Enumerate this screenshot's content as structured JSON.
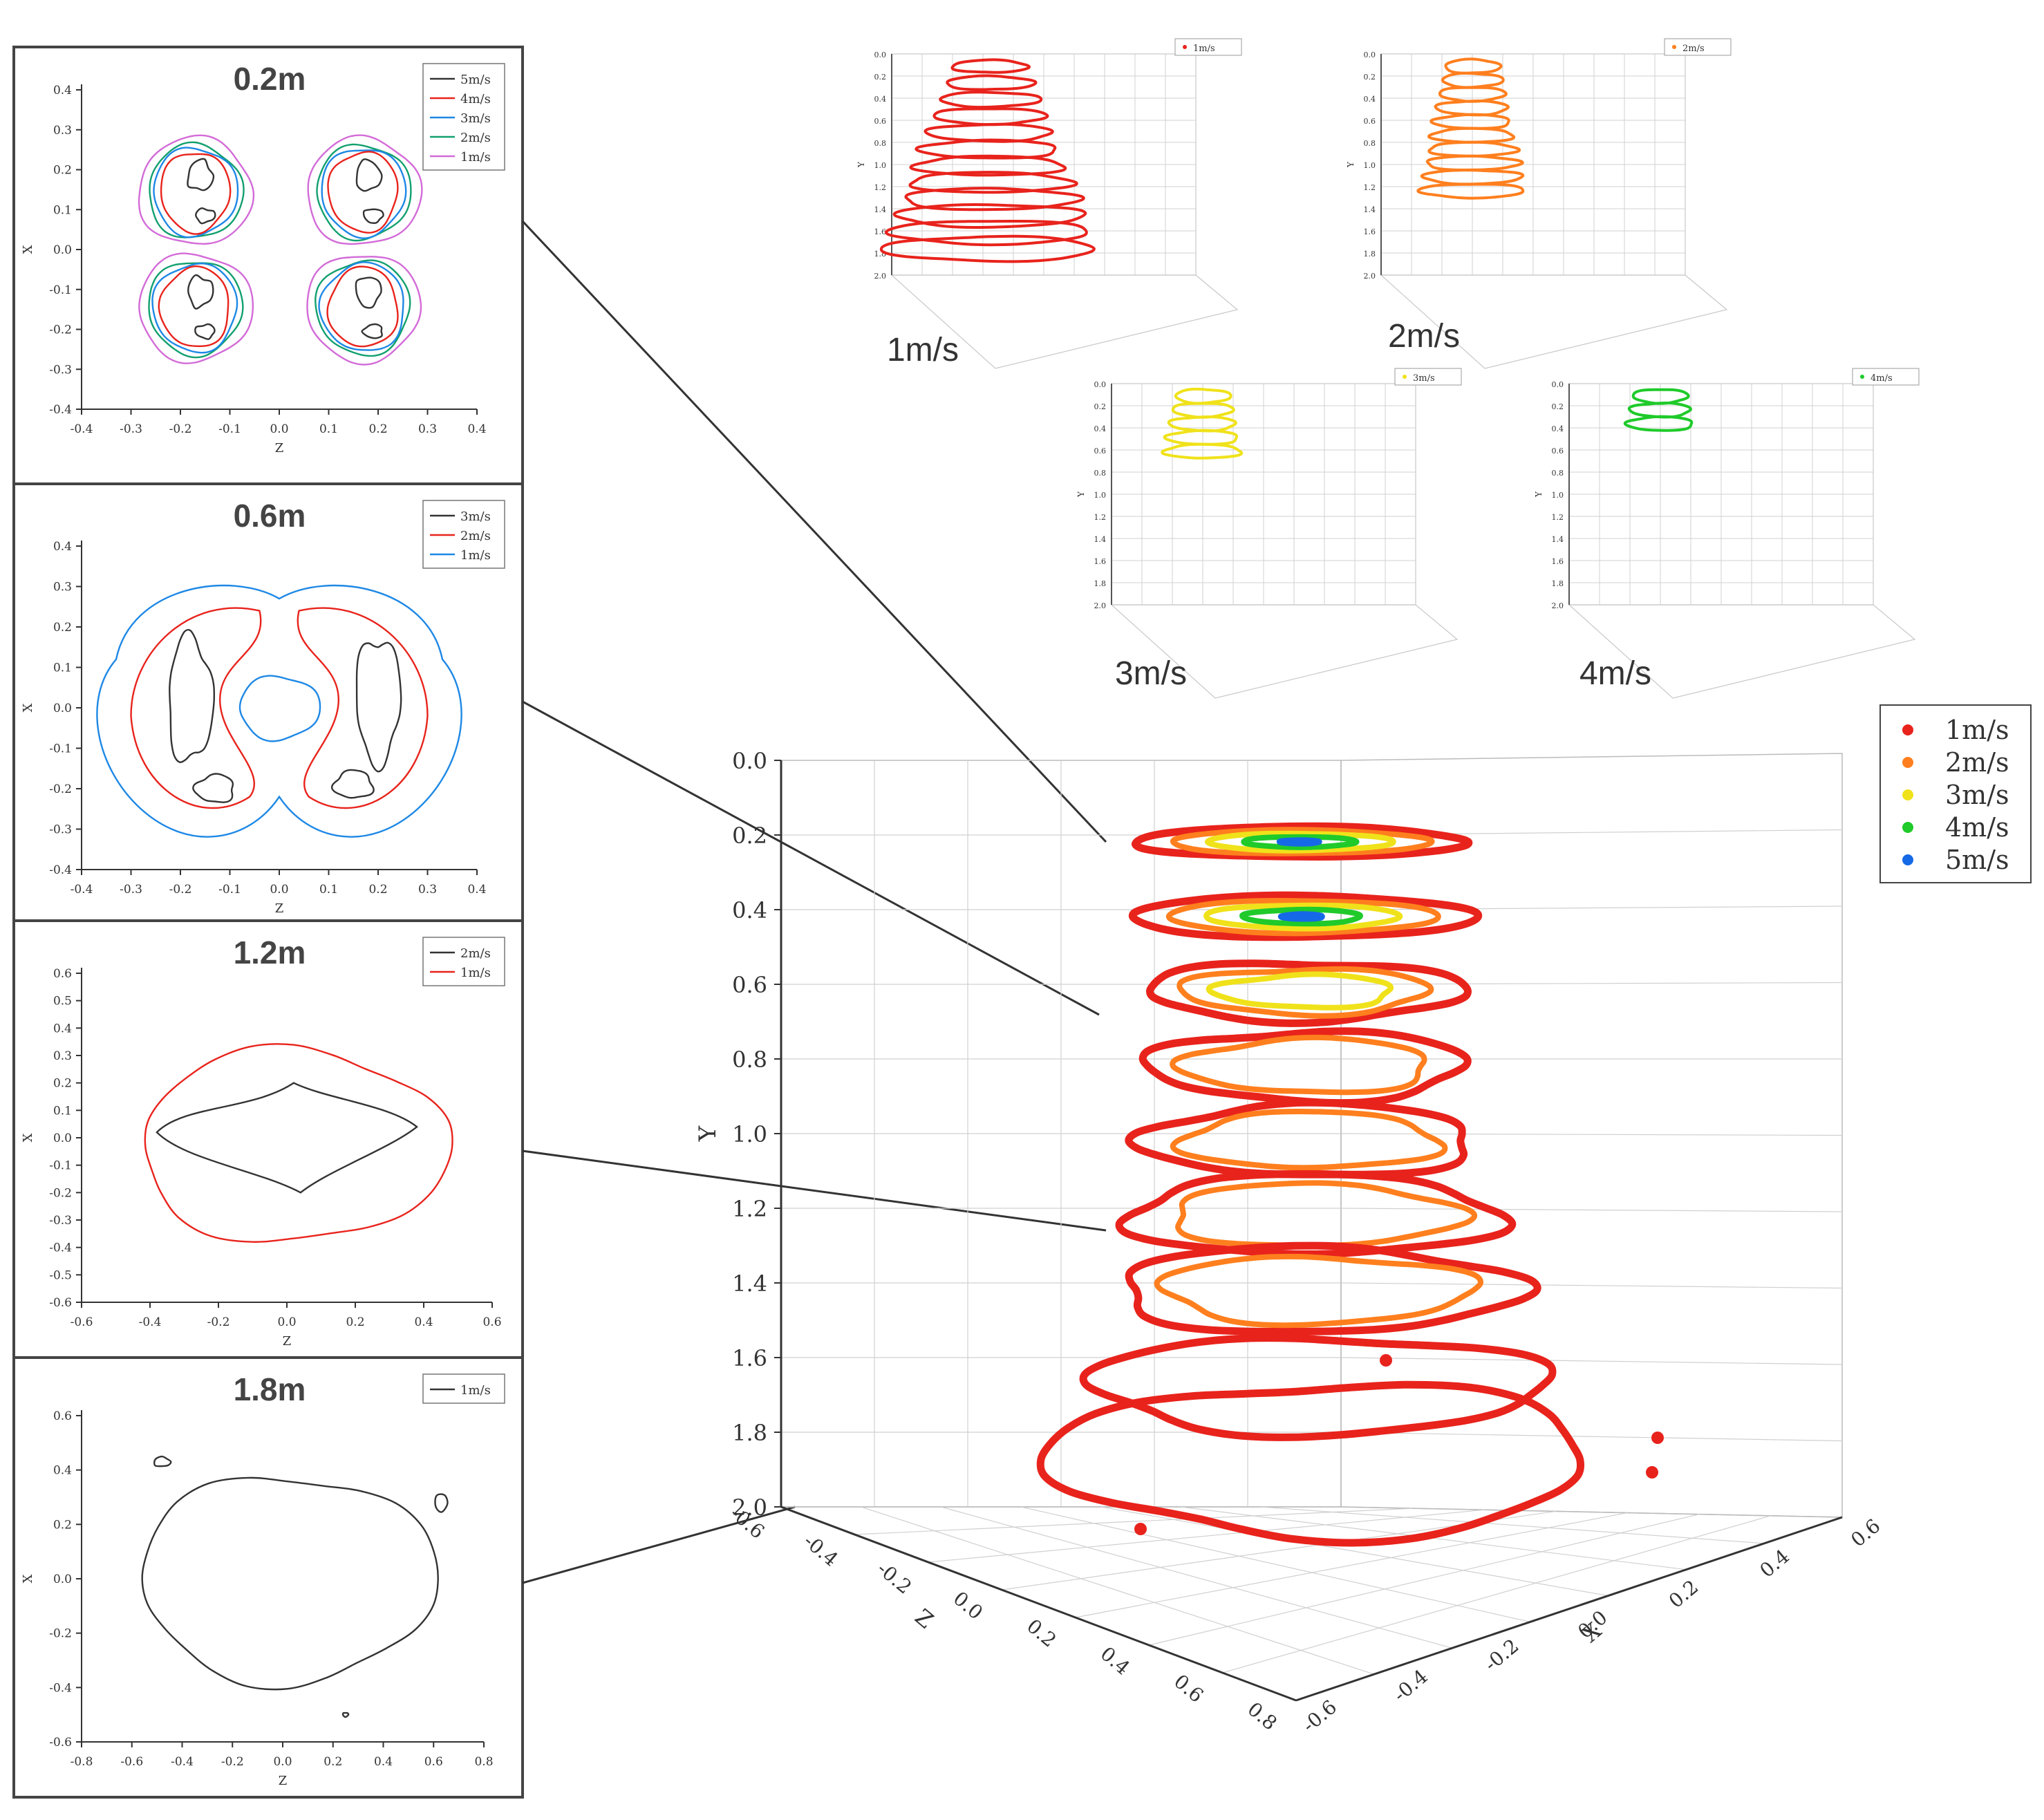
{
  "colors": {
    "black": "#333333",
    "red": "#e8231c",
    "blue": "#1e88e5",
    "green": "#12a06e",
    "magenta": "#d36bd8",
    "orange": "#ff7f1e",
    "yellow": "#f0e21a",
    "lime": "#1fca2a",
    "ptblue": "#1669e6",
    "grid": "#d0d0d0",
    "frame": "#444444"
  },
  "chart_data": [
    {
      "id": "slice-0.2",
      "type": "line",
      "title": "0.2m",
      "xlabel": "Z",
      "ylabel": "X",
      "xlim": [
        -0.4,
        0.4
      ],
      "ylim": [
        -0.4,
        0.4
      ],
      "xticks": [
        "-0.4",
        "-0.3",
        "-0.2",
        "-0.1",
        "0.0",
        "0.1",
        "0.2",
        "0.3",
        "0.4"
      ],
      "yticks": [
        "0.4",
        "0.3",
        "0.2",
        "0.1",
        "0.0",
        "-0.1",
        "-0.2",
        "-0.3",
        "-0.4"
      ],
      "legend": "top-right",
      "series": [
        {
          "name": "5m/s",
          "color": "black"
        },
        {
          "name": "4m/s",
          "color": "red"
        },
        {
          "name": "3m/s",
          "color": "blue"
        },
        {
          "name": "2m/s",
          "color": "green"
        },
        {
          "name": "1m/s",
          "color": "magenta"
        }
      ]
    },
    {
      "id": "slice-0.6",
      "type": "line",
      "title": "0.6m",
      "xlabel": "Z",
      "ylabel": "X",
      "xlim": [
        -0.4,
        0.4
      ],
      "ylim": [
        -0.4,
        0.4
      ],
      "xticks": [
        "-0.4",
        "-0.3",
        "-0.2",
        "-0.1",
        "0.0",
        "0.1",
        "0.2",
        "0.3",
        "0.4"
      ],
      "yticks": [
        "0.4",
        "0.3",
        "0.2",
        "0.1",
        "0.0",
        "-0.1",
        "-0.2",
        "-0.3",
        "-0.4"
      ],
      "legend": "top-right",
      "series": [
        {
          "name": "3m/s",
          "color": "black"
        },
        {
          "name": "2m/s",
          "color": "red"
        },
        {
          "name": "1m/s",
          "color": "blue"
        }
      ]
    },
    {
      "id": "slice-1.2",
      "type": "line",
      "title": "1.2m",
      "xlabel": "Z",
      "ylabel": "X",
      "xlim": [
        -0.6,
        0.6
      ],
      "ylim": [
        -0.6,
        0.6
      ],
      "xticks": [
        "-0.6",
        "-0.4",
        "-0.2",
        "0.0",
        "0.2",
        "0.4",
        "0.6"
      ],
      "yticks": [
        "0.6",
        "0.5",
        "0.4",
        "0.3",
        "0.2",
        "0.1",
        "0.0",
        "-0.1",
        "-0.2",
        "-0.3",
        "-0.4",
        "-0.5",
        "-0.6"
      ],
      "legend": "top-right",
      "series": [
        {
          "name": "2m/s",
          "color": "black"
        },
        {
          "name": "1m/s",
          "color": "red"
        }
      ]
    },
    {
      "id": "slice-1.8",
      "type": "line",
      "title": "1.8m",
      "xlabel": "Z",
      "ylabel": "X",
      "xlim": [
        -0.8,
        0.8
      ],
      "ylim": [
        -0.6,
        0.6
      ],
      "xticks": [
        "-0.8",
        "-0.6",
        "-0.4",
        "-0.2",
        "0.0",
        "0.2",
        "0.4",
        "0.6",
        "0.8"
      ],
      "yticks": [
        "0.6",
        "0.4",
        "0.2",
        "0.0",
        "-0.2",
        "-0.4",
        "-0.6"
      ],
      "legend": "top-right",
      "series": [
        {
          "name": "1m/s",
          "color": "black"
        }
      ]
    },
    {
      "id": "iso-1",
      "type": "scatter",
      "caption": "1m/s",
      "legend_entry": "1m/s",
      "color": "red",
      "yticks": [
        "0.0",
        "0.2",
        "0.4",
        "0.6",
        "0.8",
        "1.0",
        "1.2",
        "1.4",
        "1.6",
        "1.8",
        "2.0"
      ],
      "ylabel": "Y"
    },
    {
      "id": "iso-2",
      "type": "scatter",
      "caption": "2m/s",
      "legend_entry": "2m/s",
      "color": "orange",
      "yticks": [
        "0.0",
        "0.2",
        "0.4",
        "0.6",
        "0.8",
        "1.0",
        "1.2",
        "1.4",
        "1.6",
        "1.8",
        "2.0"
      ],
      "ylabel": "Y"
    },
    {
      "id": "iso-3",
      "type": "scatter",
      "caption": "3m/s",
      "legend_entry": "3m/s",
      "color": "yellow",
      "yticks": [
        "0.0",
        "0.2",
        "0.4",
        "0.6",
        "0.8",
        "1.0",
        "1.2",
        "1.4",
        "1.6",
        "1.8",
        "2.0"
      ],
      "ylabel": "Y"
    },
    {
      "id": "iso-4",
      "type": "scatter",
      "caption": "4m/s",
      "legend_entry": "4m/s",
      "color": "lime",
      "yticks": [
        "0.0",
        "0.2",
        "0.4",
        "0.6",
        "0.8",
        "1.0",
        "1.2",
        "1.4",
        "1.6",
        "1.8",
        "2.0"
      ],
      "ylabel": "Y"
    },
    {
      "id": "main-3d",
      "type": "scatter",
      "ylabel": "Y",
      "zlabel": "Z",
      "xlabel": "X",
      "ylim": [
        0.0,
        2.0
      ],
      "yticks": [
        "0.0",
        "0.2",
        "0.4",
        "0.6",
        "0.8",
        "1.0",
        "1.2",
        "1.4",
        "1.6",
        "1.8",
        "2.0"
      ],
      "zticks": [
        "-0.6",
        "-0.4",
        "-0.2",
        "0.0",
        "0.2",
        "0.4",
        "0.6",
        "0.8"
      ],
      "xticks": [
        "0.6",
        "0.4",
        "0.2",
        "0.0",
        "-0.2",
        "-0.4",
        "-0.6"
      ],
      "legend": "top-right",
      "series": [
        {
          "name": "1m/s",
          "color": "red"
        },
        {
          "name": "2m/s",
          "color": "orange"
        },
        {
          "name": "3m/s",
          "color": "yellow"
        },
        {
          "name": "4m/s",
          "color": "lime"
        },
        {
          "name": "5m/s",
          "color": "ptblue"
        }
      ],
      "layers": [
        {
          "y": 0.2,
          "speeds": [
            "1m/s",
            "2m/s",
            "3m/s",
            "4m/s",
            "5m/s"
          ]
        },
        {
          "y": 0.4,
          "speeds": [
            "1m/s",
            "2m/s",
            "3m/s",
            "4m/s",
            "5m/s"
          ]
        },
        {
          "y": 0.6,
          "speeds": [
            "1m/s",
            "2m/s",
            "3m/s"
          ]
        },
        {
          "y": 0.8,
          "speeds": [
            "1m/s",
            "2m/s"
          ]
        },
        {
          "y": 1.0,
          "speeds": [
            "1m/s",
            "2m/s"
          ]
        },
        {
          "y": 1.2,
          "speeds": [
            "1m/s",
            "2m/s"
          ]
        },
        {
          "y": 1.4,
          "speeds": [
            "1m/s",
            "2m/s"
          ]
        },
        {
          "y": 1.6,
          "speeds": [
            "1m/s"
          ]
        },
        {
          "y": 1.8,
          "speeds": [
            "1m/s"
          ]
        }
      ]
    }
  ]
}
